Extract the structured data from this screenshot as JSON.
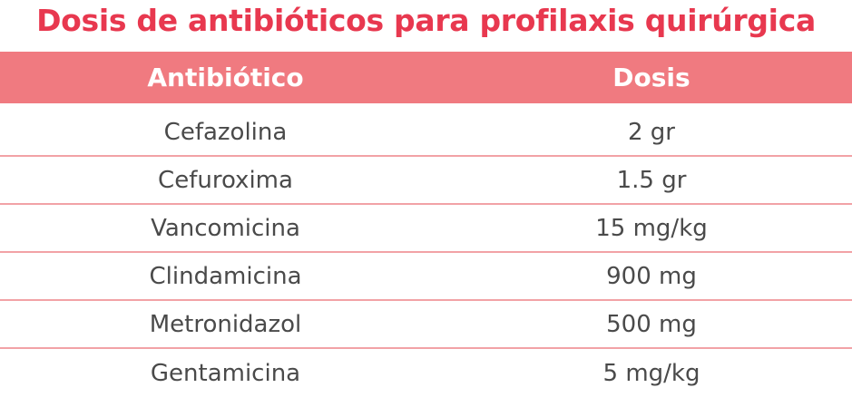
{
  "title": "Dosis de antibióticos para profilaxis quirúrgica",
  "table": {
    "headers": [
      "Antibiótico",
      "Dosis"
    ],
    "rows": [
      [
        "Cefazolina",
        "2 gr"
      ],
      [
        "Cefuroxima",
        "1.5 gr"
      ],
      [
        "Vancomicina",
        "15 mg/kg"
      ],
      [
        "Clindamicina",
        "900 mg"
      ],
      [
        "Metronidazol",
        "500 mg"
      ],
      [
        "Gentamicina",
        "5 mg/kg"
      ]
    ]
  },
  "colors": {
    "title": "#e8384f",
    "header_bg": "#f07a80",
    "row_divider": "#f2a2a6",
    "cell_text": "#4a4a4a"
  }
}
